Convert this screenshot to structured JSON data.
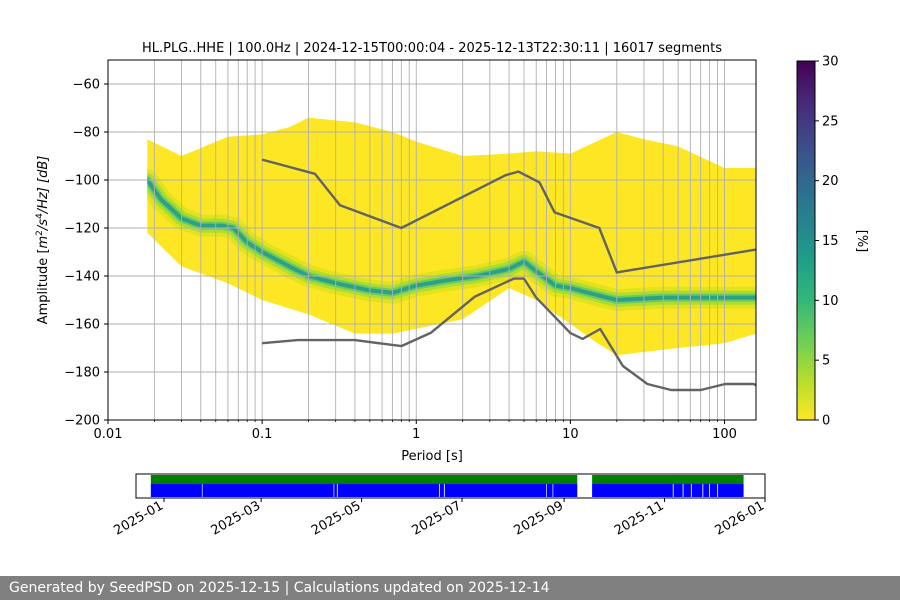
{
  "chart_data": {
    "type": "heatmap",
    "title": "HL.PLG..HHE | 100.0Hz | 2024-12-15T00:00:04 - 2025-12-13T22:30:11 | 16017 segments",
    "xlabel": "Period [s]",
    "ylabel": "Amplitude [m²/s⁴/Hz] [dB]",
    "ylabel_parts": {
      "base": "Amplitude [",
      "m": "m",
      "exp2": "2",
      "slash_s": "/s",
      "exp4": "4",
      "hz": "/Hz] [dB]"
    },
    "x_scale": "log",
    "xlim": [
      0.01,
      160
    ],
    "ylim": [
      -200,
      -50
    ],
    "x_ticks": [
      0.01,
      0.1,
      1,
      10,
      100
    ],
    "x_tick_labels": [
      "0.01",
      "0.1",
      "1",
      "10",
      "100"
    ],
    "y_ticks": [
      -200,
      -180,
      -160,
      -140,
      -120,
      -100,
      -80,
      -60
    ],
    "y_tick_labels": [
      "−200",
      "−180",
      "−160",
      "−140",
      "−120",
      "−100",
      "−80",
      "−60"
    ],
    "grid": true,
    "heatmap": {
      "upper_envelope": [
        [
          0.018,
          -83
        ],
        [
          0.03,
          -90
        ],
        [
          0.06,
          -82
        ],
        [
          0.1,
          -81
        ],
        [
          0.15,
          -78
        ],
        [
          0.2,
          -74
        ],
        [
          0.4,
          -76
        ],
        [
          0.7,
          -80
        ],
        [
          1,
          -84
        ],
        [
          2,
          -90
        ],
        [
          4,
          -89
        ],
        [
          6,
          -88
        ],
        [
          10,
          -89
        ],
        [
          20,
          -80
        ],
        [
          30,
          -83
        ],
        [
          50,
          -86
        ],
        [
          100,
          -95
        ],
        [
          160,
          -95
        ]
      ],
      "lower_envelope": [
        [
          0.018,
          -122
        ],
        [
          0.03,
          -136
        ],
        [
          0.06,
          -143
        ],
        [
          0.1,
          -150
        ],
        [
          0.2,
          -156
        ],
        [
          0.4,
          -164
        ],
        [
          0.7,
          -164
        ],
        [
          1,
          -162
        ],
        [
          2,
          -158
        ],
        [
          4,
          -145
        ],
        [
          6,
          -150
        ],
        [
          10,
          -160
        ],
        [
          15,
          -168
        ],
        [
          20,
          -173
        ],
        [
          50,
          -170
        ],
        [
          100,
          -168
        ],
        [
          160,
          -164
        ]
      ],
      "mode_curve": [
        [
          0.018,
          -100
        ],
        [
          0.022,
          -108
        ],
        [
          0.03,
          -116
        ],
        [
          0.04,
          -119
        ],
        [
          0.055,
          -119
        ],
        [
          0.065,
          -120
        ],
        [
          0.08,
          -126
        ],
        [
          0.1,
          -130
        ],
        [
          0.15,
          -136
        ],
        [
          0.2,
          -140
        ],
        [
          0.3,
          -143
        ],
        [
          0.5,
          -146
        ],
        [
          0.7,
          -147
        ],
        [
          1,
          -144
        ],
        [
          1.5,
          -142
        ],
        [
          2.5,
          -140
        ],
        [
          4,
          -137
        ],
        [
          5,
          -134
        ],
        [
          6,
          -138
        ],
        [
          8,
          -144
        ],
        [
          10,
          -145
        ],
        [
          15,
          -148
        ],
        [
          20,
          -150
        ],
        [
          40,
          -149
        ],
        [
          100,
          -149
        ],
        [
          160,
          -149
        ]
      ],
      "cmap": "viridis"
    },
    "nhnm": [
      [
        0.1,
        -91.5
      ],
      [
        0.22,
        -97.4
      ],
      [
        0.32,
        -110.5
      ],
      [
        0.8,
        -120
      ],
      [
        3.8,
        -98
      ],
      [
        4.6,
        -96.5
      ],
      [
        6.3,
        -101
      ],
      [
        7.9,
        -113.5
      ],
      [
        15.4,
        -120
      ],
      [
        20,
        -138.5
      ],
      [
        160,
        -129
      ]
    ],
    "nlnm": [
      [
        0.1,
        -168
      ],
      [
        0.17,
        -166.7
      ],
      [
        0.4,
        -166.7
      ],
      [
        0.8,
        -169.2
      ],
      [
        1.24,
        -163.7
      ],
      [
        2.4,
        -148.6
      ],
      [
        4.3,
        -141.1
      ],
      [
        5,
        -141.1
      ],
      [
        6,
        -149
      ],
      [
        10,
        -163.8
      ],
      [
        12,
        -166.2
      ],
      [
        15.6,
        -162.1
      ],
      [
        21.9,
        -177.5
      ],
      [
        31.6,
        -185
      ],
      [
        45,
        -187.5
      ],
      [
        70,
        -187.5
      ],
      [
        101,
        -185
      ],
      [
        154,
        -185
      ],
      [
        160,
        -185.5
      ]
    ],
    "colorbar": {
      "label": "[%]",
      "min": 0,
      "max": 30,
      "ticks": [
        0,
        5,
        10,
        15,
        20,
        25,
        30
      ],
      "tick_labels": [
        "0",
        "5",
        "10",
        "15",
        "20",
        "25",
        "30"
      ],
      "colors": [
        "#fde725",
        "#b5de2b",
        "#6ece58",
        "#35b779",
        "#1f9e89",
        "#26828e",
        "#31688e",
        "#3e4989",
        "#482878",
        "#440154"
      ]
    },
    "availability": {
      "date_ticks": [
        "2025-01",
        "2025-03",
        "2025-05",
        "2025-07",
        "2025-09",
        "2025-11",
        "2026-01"
      ],
      "date_tick_days": [
        17,
        76,
        137,
        198,
        260,
        321,
        382
      ],
      "range_days": [
        0,
        382
      ],
      "green_segments": [
        [
          9,
          268
        ],
        [
          277,
          369
        ]
      ],
      "blue_segments": [
        [
          9,
          40
        ],
        [
          40.4,
          120
        ],
        [
          120.4,
          122
        ],
        [
          122.5,
          184
        ],
        [
          184.5,
          187
        ],
        [
          187.5,
          249
        ],
        [
          249.4,
          253
        ],
        [
          253.4,
          268
        ],
        [
          277,
          326
        ],
        [
          326.5,
          332
        ],
        [
          332.5,
          337
        ],
        [
          337.5,
          344
        ],
        [
          344.5,
          348
        ],
        [
          348.5,
          353
        ],
        [
          353.5,
          369
        ]
      ],
      "green_color": "#008000",
      "blue_color": "#0000ff"
    }
  },
  "footer": {
    "text": "Generated by SeedPSD on 2025-12-15 | Calculations updated on 2025-12-14"
  }
}
